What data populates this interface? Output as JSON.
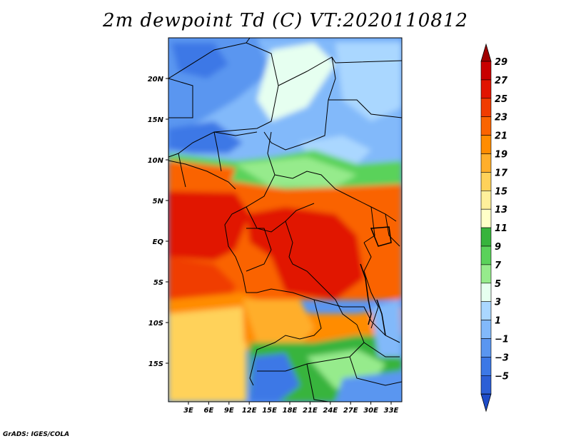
{
  "title": "2m dewpoint Td (C) VT:2020110812",
  "credit": "GrADS: IGES/COLA",
  "lat_ticks": [
    "20N",
    "15N",
    "10N",
    "5N",
    "EQ",
    "5S",
    "10S",
    "15S"
  ],
  "lon_ticks": [
    "3E",
    "6E",
    "9E",
    "12E",
    "15E",
    "18E",
    "21E",
    "24E",
    "27E",
    "30E",
    "33E"
  ],
  "colorbar": {
    "labels": [
      "29",
      "27",
      "25",
      "23",
      "21",
      "19",
      "17",
      "15",
      "13",
      "11",
      "9",
      "7",
      "5",
      "3",
      "1",
      "−1",
      "−3",
      "−5"
    ],
    "colors": [
      "#a00000",
      "#c80000",
      "#e11400",
      "#f03c00",
      "#fa6400",
      "#ff8c00",
      "#ffae2a",
      "#ffd25a",
      "#fff09b",
      "#ffffc8",
      "#37b43c",
      "#5ad25a",
      "#96eb8c",
      "#e6fff0",
      "#aad7ff",
      "#82b9fa",
      "#5a96f0",
      "#3c78e6",
      "#2c5fd6",
      "#1e4cc8"
    ]
  },
  "chart_data": {
    "type": "heatmap",
    "title": "2m dewpoint Td (C) VT:2020110812",
    "variable": "2m dewpoint",
    "units": "C",
    "valid_time": "2020110812",
    "lon_range": [
      0,
      35
    ],
    "lat_range": [
      -20,
      24
    ],
    "contour_levels": [
      -5,
      -3,
      -1,
      1,
      3,
      5,
      7,
      9,
      11,
      13,
      15,
      17,
      19,
      21,
      23,
      25,
      27,
      29
    ]
  }
}
